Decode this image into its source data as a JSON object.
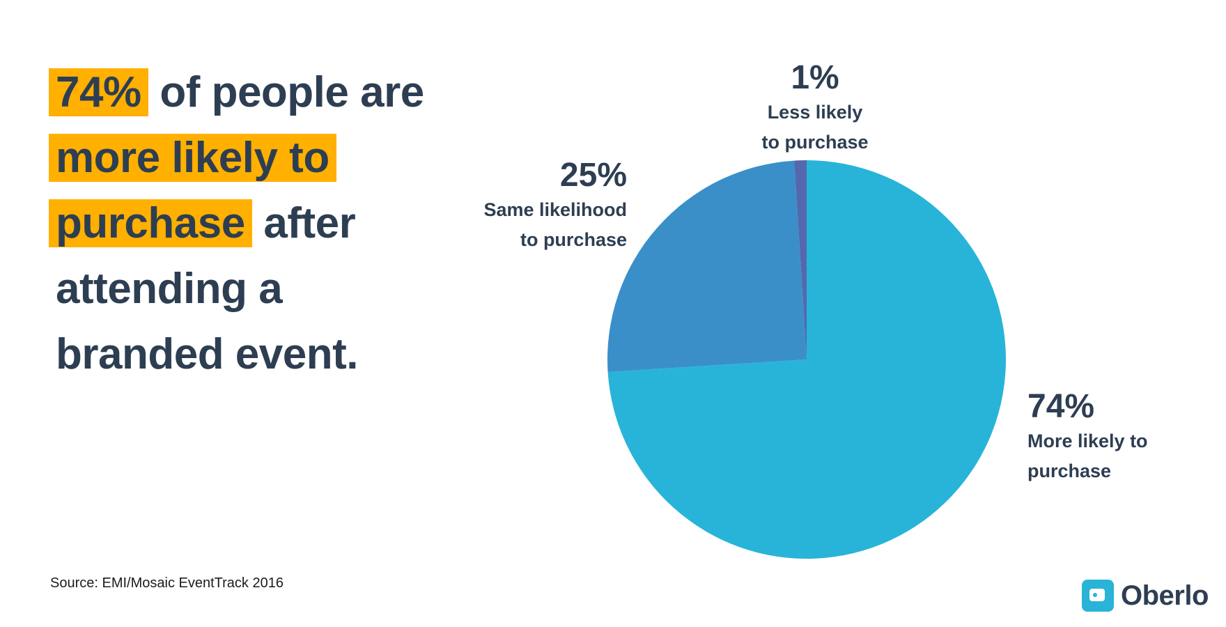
{
  "headline": {
    "line1_highlight": "74%",
    "line1_rest": "of people are",
    "line2_highlight": "more likely to",
    "line3_highlight": "purchase",
    "line3_rest": "after",
    "line4": "attending a",
    "line5": "branded event."
  },
  "chart_data": {
    "type": "pie",
    "title": "",
    "slices": [
      {
        "value": 74,
        "pct_label": "74%",
        "line1": "More likely to",
        "line2": "purchase",
        "color": "#28b4d8"
      },
      {
        "value": 25,
        "pct_label": "25%",
        "line1": "Same likelihood",
        "line2": "to purchase",
        "color": "#3a8fc9"
      },
      {
        "value": 1,
        "pct_label": "1%",
        "line1": "Less likely",
        "line2": "to purchase",
        "color": "#5468ae"
      }
    ]
  },
  "source": "Source: EMI/Mosaic EventTrack 2016",
  "brand": {
    "name": "Oberlo",
    "color": "#29b3d6",
    "highlight_color": "#ffb000"
  }
}
